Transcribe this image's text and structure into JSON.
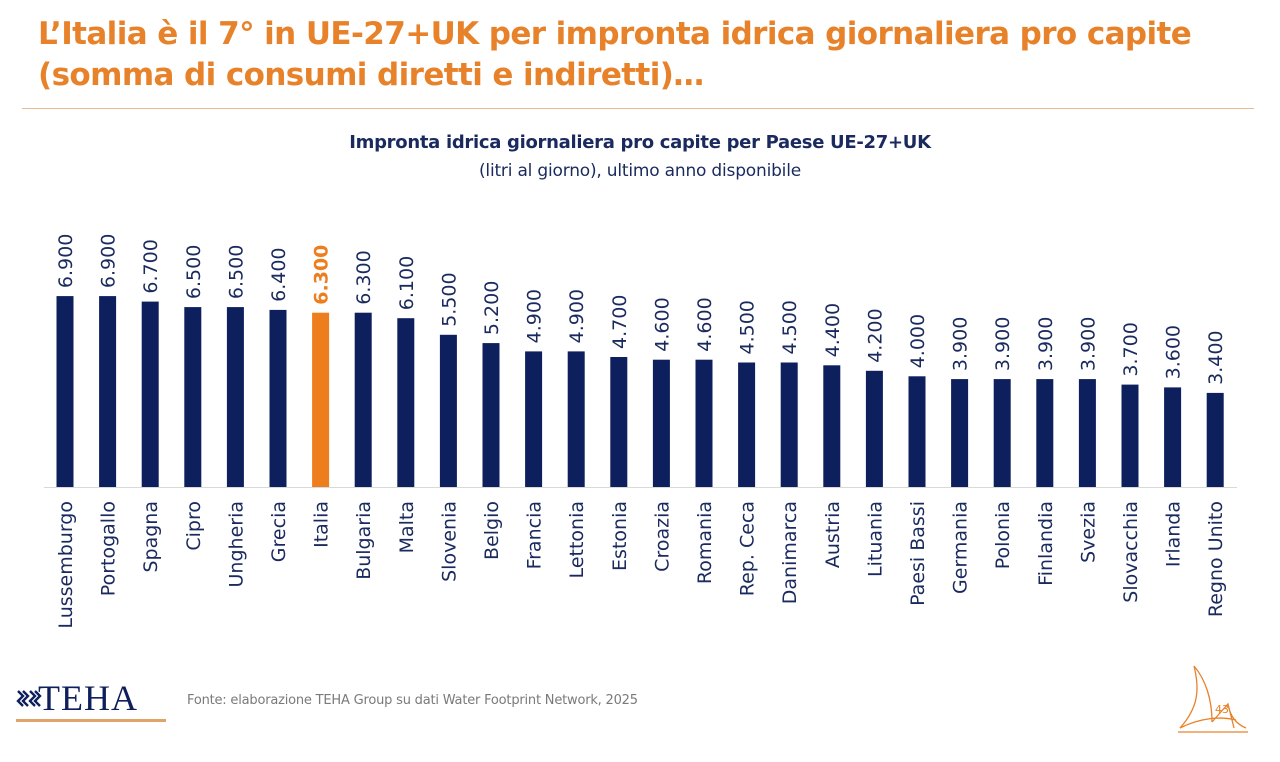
{
  "header": {
    "title_line1": "L’Italia è il 7° in UE-27+UK per impronta idrica giornaliera pro capite",
    "title_line2": "(somma di consumi diretti e indiretti)…"
  },
  "chart_data": {
    "type": "bar",
    "title": "Impronta idrica giornaliera pro capite per Paese UE-27+UK",
    "subtitle": "(litri al giorno), ultimo anno disponibile",
    "xlabel": "",
    "ylabel": "",
    "ylim": [
      0,
      7000
    ],
    "grid": false,
    "legend": "none",
    "categories": [
      "Lussemburgo",
      "Portogallo",
      "Spagna",
      "Cipro",
      "Ungheria",
      "Grecia",
      "Italia",
      "Bulgaria",
      "Malta",
      "Slovenia",
      "Belgio",
      "Francia",
      "Lettonia",
      "Estonia",
      "Croazia",
      "Romania",
      "Rep. Ceca",
      "Danimarca",
      "Austria",
      "Lituania",
      "Paesi Bassi",
      "Germania",
      "Polonia",
      "Finlandia",
      "Svezia",
      "Slovacchia",
      "Irlanda",
      "Regno Unito"
    ],
    "values": [
      6900,
      6900,
      6700,
      6500,
      6500,
      6400,
      6300,
      6300,
      6100,
      5500,
      5200,
      4900,
      4900,
      4700,
      4600,
      4600,
      4500,
      4500,
      4400,
      4200,
      4000,
      3900,
      3900,
      3900,
      3900,
      3700,
      3600,
      3400
    ],
    "value_labels": [
      "6.900",
      "6.900",
      "6.700",
      "6.500",
      "6.500",
      "6.400",
      "6.300",
      "6.300",
      "6.100",
      "5.500",
      "5.200",
      "4.900",
      "4.900",
      "4.700",
      "4.600",
      "4.600",
      "4.500",
      "4.500",
      "4.400",
      "4.200",
      "4.000",
      "3.900",
      "3.900",
      "3.900",
      "3.900",
      "3.700",
      "3.600",
      "3.400"
    ],
    "highlight": "Italia",
    "colors": {
      "bar": "#0d1f5c",
      "highlight": "#ee7d1e",
      "axis": "#d9d9d9"
    }
  },
  "footer": {
    "logo_text": "TEHA",
    "source": "Fonte: elaborazione TEHA Group su dati Water Footprint Network, 2025",
    "page_number": "43"
  }
}
